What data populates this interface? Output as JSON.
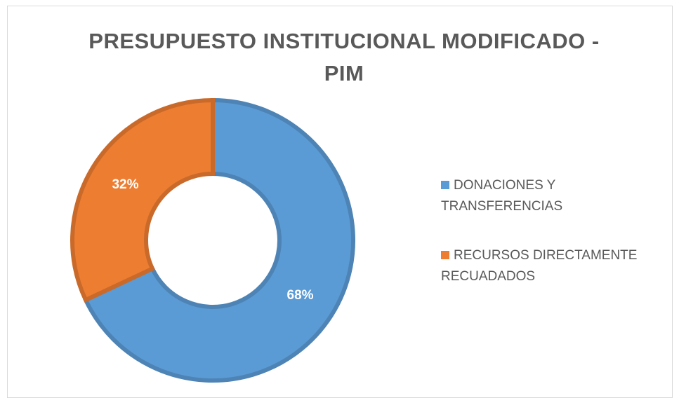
{
  "chart_data": {
    "type": "donut",
    "title": "PRESUPUESTO INSTITUCIONAL MODIFICADO - PIM",
    "categories": [
      "DONACIONES Y TRANSFERENCIAS",
      "RECURSOS DIRECTAMENTE RECUADADOS"
    ],
    "values": [
      68,
      32
    ],
    "value_labels": [
      "68%",
      "32%"
    ],
    "colors": [
      "#5b9bd5",
      "#ed7d31"
    ],
    "legend": "right"
  }
}
